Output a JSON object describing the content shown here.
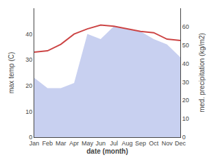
{
  "chart_data": {
    "type": "line",
    "categories": [
      "Jan",
      "Feb",
      "Mar",
      "Apr",
      "May",
      "Jun",
      "Jul",
      "Aug",
      "Sep",
      "Oct",
      "Nov",
      "Dec"
    ],
    "series": [
      {
        "type": "area",
        "color": "#c8d0f0",
        "values": [
          23,
          19,
          19,
          21,
          40,
          38,
          43,
          42,
          41,
          38,
          36,
          31
        ]
      },
      {
        "type": "line",
        "color": "#cc4444",
        "values": [
          33,
          33.5,
          36,
          40,
          42,
          43.5,
          43,
          42,
          41,
          40.5,
          38,
          37.5
        ]
      }
    ],
    "x_label": "date (month)",
    "y_label": "max temp (C)",
    "y2_label": "med. precipitation (kg/m2)",
    "ylim": [
      0,
      50
    ],
    "yticks": [
      0,
      10,
      20,
      30,
      40
    ],
    "y2lim": [
      0,
      70
    ],
    "y2ticks": [
      0,
      10,
      20,
      30,
      40,
      50,
      60
    ],
    "grid": false
  }
}
